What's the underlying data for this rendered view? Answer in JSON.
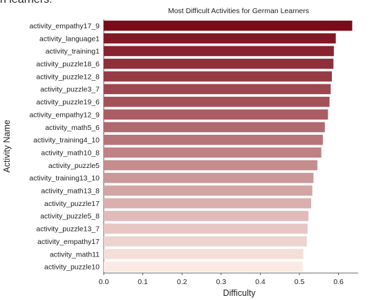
{
  "page_fragment": {
    "text": "n learners."
  },
  "chart_data": {
    "type": "bar",
    "orientation": "horizontal",
    "title": "Most Difficult Activities for German Learners",
    "xlabel": "Difficulty",
    "ylabel": "Activity Name",
    "xlim": [
      0,
      0.65
    ],
    "xticks": [
      "0.0",
      "0.1",
      "0.2",
      "0.3",
      "0.4",
      "0.5",
      "0.6"
    ],
    "grid": false,
    "colormap": "Reds (darkest at top)",
    "color_start": "#7a0c1a",
    "color_end": "#fbeae3",
    "categories": [
      "activity_empathy17_9",
      "activity_language1",
      "activity_training1",
      "activity_puzzle18_6",
      "activity_puzzle12_8",
      "activity_puzzle3_7",
      "activity_puzzle19_6",
      "activity_empathy12_9",
      "activity_math5_6",
      "activity_training4_10",
      "activity_math10_8",
      "activity_puzzle5",
      "activity_training13_10",
      "activity_math13_8",
      "activity_puzzle17",
      "activity_puzzle5_8",
      "activity_puzzle13_7",
      "activity_empathy17",
      "activity_math11",
      "activity_puzzle10"
    ],
    "values": [
      0.635,
      0.593,
      0.588,
      0.587,
      0.583,
      0.58,
      0.577,
      0.573,
      0.565,
      0.56,
      0.556,
      0.546,
      0.536,
      0.533,
      0.53,
      0.523,
      0.521,
      0.519,
      0.51,
      0.508
    ]
  }
}
